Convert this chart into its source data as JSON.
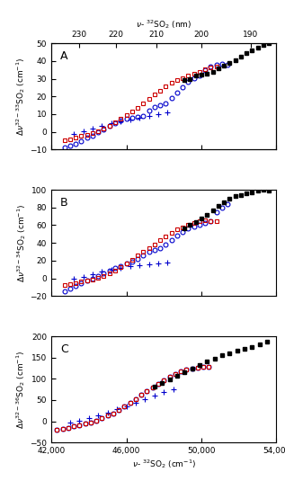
{
  "top_xlabel": "v- $^{32}$SO$_2$ (nm)",
  "bottom_xlabel": "v- $^{32}$SO$_2$ (cm$^{-1}$)",
  "xlim_cm": [
    42000,
    54000
  ],
  "panels": [
    {
      "label": "A",
      "ylabel": "$\\Delta\\nu^{32-33}$SO$_2$ (cm$^{-1}$)",
      "ylim": [
        -10,
        50
      ],
      "yticks": [
        -10,
        0,
        10,
        20,
        30,
        40,
        50
      ]
    },
    {
      "label": "B",
      "ylabel": "$\\Delta\\nu^{32-34}$SO$_2$ (cm$^{-1}$)",
      "ylim": [
        -20,
        100
      ],
      "yticks": [
        -20,
        0,
        20,
        40,
        60,
        80,
        100
      ]
    },
    {
      "label": "C",
      "ylabel": "$\\Delta\\nu^{32-36}$SO$_2$ (cm$^{-1}$)",
      "ylim": [
        -50,
        200
      ],
      "yticks": [
        -50,
        0,
        50,
        100,
        150,
        200
      ]
    }
  ],
  "top_nm_ticks": [
    230,
    210,
    220,
    200,
    190
  ],
  "xticks_cm": [
    42000,
    46000,
    50000,
    54000
  ],
  "colors": {
    "black": "#000000",
    "red": "#cc0000",
    "blue": "#0000cc"
  },
  "panel_A": {
    "black_sq_x": [
      49100,
      49400,
      49700,
      50000,
      50300,
      50600,
      50900,
      51200,
      51500,
      51800,
      52100,
      52400,
      52700,
      53000,
      53300,
      53600
    ],
    "black_sq_y": [
      29,
      30,
      32,
      32.5,
      33,
      34,
      36,
      37.5,
      39,
      40.5,
      42.5,
      44.5,
      46,
      47.5,
      49,
      50
    ],
    "red_sq_x": [
      42700,
      43000,
      43300,
      43600,
      43900,
      44200,
      44500,
      44800,
      45100,
      45400,
      45700,
      46000,
      46300,
      46600,
      46900,
      47200,
      47500,
      47800,
      48100,
      48400,
      48700,
      49000,
      49300,
      49600,
      49900,
      50200,
      50500,
      50800
    ],
    "red_sq_y": [
      -5,
      -4.5,
      -3.5,
      -2.5,
      -1.5,
      -0.5,
      0.5,
      2,
      3.5,
      5.5,
      7.5,
      9.5,
      11.5,
      13.5,
      16,
      18.5,
      21,
      23,
      25.5,
      27.5,
      29,
      30.5,
      32,
      33,
      34,
      35.5,
      36.5,
      37
    ],
    "blue_circ_x": [
      42700,
      43000,
      43300,
      43600,
      43900,
      44200,
      44500,
      44800,
      45100,
      45400,
      45700,
      46000,
      46300,
      46600,
      46900,
      47200,
      47500,
      47800,
      48100,
      48400,
      48700,
      49000,
      49300,
      49600,
      49900,
      50200,
      50500,
      50800,
      51100,
      51400
    ],
    "blue_circ_y": [
      -9,
      -8,
      -7,
      -5.5,
      -3.5,
      -2,
      0,
      1.5,
      3.5,
      5,
      6.5,
      7.5,
      8,
      8.5,
      9,
      12,
      14,
      15,
      16,
      19,
      22,
      25,
      28,
      30.5,
      32,
      35,
      37,
      38,
      38.5,
      38
    ],
    "blue_plus_x": [
      43200,
      43700,
      44200,
      44700,
      45200,
      45700,
      46200,
      46700,
      47200,
      47700,
      48200
    ],
    "blue_plus_y": [
      -1,
      0.5,
      2,
      3.5,
      5,
      6,
      7,
      8,
      9,
      10,
      11
    ]
  },
  "panel_B": {
    "black_sq_x": [
      49100,
      49400,
      49700,
      50000,
      50300,
      50600,
      50900,
      51200,
      51500,
      51800,
      52100,
      52400,
      52700,
      53000,
      53300,
      53600
    ],
    "black_sq_y": [
      56,
      60,
      64,
      68,
      72,
      77,
      82,
      86,
      90,
      93,
      94,
      96,
      97,
      99,
      100,
      99
    ],
    "red_sq_x": [
      42700,
      43000,
      43300,
      43600,
      43900,
      44200,
      44500,
      44800,
      45100,
      45400,
      45700,
      46000,
      46300,
      46600,
      46900,
      47200,
      47500,
      47800,
      48100,
      48400,
      48700,
      49000,
      49300,
      49600,
      49900,
      50200,
      50500,
      50800
    ],
    "red_sq_y": [
      -8,
      -7,
      -5.5,
      -4,
      -2.5,
      -1,
      1,
      3,
      6,
      9,
      13,
      17,
      21,
      26,
      30,
      34,
      38,
      43,
      47,
      51,
      55,
      57,
      60,
      63,
      65,
      65.5,
      65,
      65
    ],
    "blue_circ_x": [
      42700,
      43000,
      43300,
      43600,
      43900,
      44200,
      44500,
      44800,
      45100,
      45400,
      45700,
      46000,
      46300,
      46600,
      46900,
      47200,
      47500,
      47800,
      48100,
      48400,
      48700,
      49000,
      49300,
      49600,
      49900,
      50200,
      50500,
      50800,
      51100,
      51400
    ],
    "blue_circ_y": [
      -15,
      -12,
      -9,
      -6,
      -3,
      0,
      3,
      6,
      9,
      12,
      14,
      16.5,
      19,
      22,
      26,
      30,
      32,
      34,
      38,
      43,
      48,
      52,
      56,
      58,
      61,
      63,
      65,
      75,
      80,
      84
    ],
    "blue_plus_x": [
      43200,
      43700,
      44200,
      44700,
      45200,
      45700,
      46200,
      46700,
      47200,
      47700,
      48200
    ],
    "blue_plus_y": [
      0,
      2,
      4.5,
      7.5,
      10,
      12,
      13.5,
      14.5,
      15.5,
      16.5,
      17.5
    ]
  },
  "panel_C": {
    "black_sq_x": [
      47500,
      47900,
      48300,
      48700,
      49100,
      49500,
      49900,
      50300,
      50700,
      51100,
      51500,
      51900,
      52300,
      52700,
      53100,
      53500
    ],
    "black_sq_y": [
      82,
      90,
      99,
      108,
      116,
      124,
      132,
      140,
      148,
      155,
      161,
      166,
      170,
      175,
      181,
      188
    ],
    "red_sq_x": [
      42300,
      42600,
      42900,
      43200,
      43500,
      43800,
      44100,
      44400,
      44700,
      45000,
      45300,
      45600,
      45900,
      46200,
      46500,
      46800,
      47100,
      47400,
      47700,
      48000,
      48300,
      48600,
      48900,
      49200,
      49500,
      49800,
      50100,
      50400
    ],
    "red_sq_y": [
      -20,
      -18,
      -15,
      -12,
      -9,
      -6,
      -2,
      2,
      7,
      13,
      19,
      27,
      35,
      44,
      53,
      62,
      71,
      80,
      89,
      97,
      105,
      112,
      118,
      122,
      125,
      127,
      128,
      128
    ],
    "blue_circ_x": [
      42300,
      42600,
      42900,
      43200,
      43500,
      43800,
      44100,
      44400,
      44700,
      45000,
      45300,
      45600,
      45900,
      46200,
      46500,
      46800,
      47100,
      47400,
      47700,
      48000,
      48300,
      48600,
      48900,
      49200,
      49500,
      49800,
      50100,
      50400
    ],
    "blue_circ_y": [
      -20,
      -18,
      -15,
      -12,
      -9,
      -6,
      -2,
      2,
      7,
      13,
      19,
      27,
      35,
      44,
      53,
      62,
      71,
      80,
      89,
      97,
      105,
      112,
      118,
      122,
      125,
      127,
      128,
      128
    ],
    "blue_plus_x": [
      43000,
      43500,
      44000,
      44500,
      45000,
      45500,
      46000,
      46500,
      47000,
      47500,
      48000,
      48500
    ],
    "blue_plus_y": [
      -2,
      2,
      7,
      13,
      20,
      28,
      36,
      44,
      52,
      60,
      68,
      76
    ]
  }
}
